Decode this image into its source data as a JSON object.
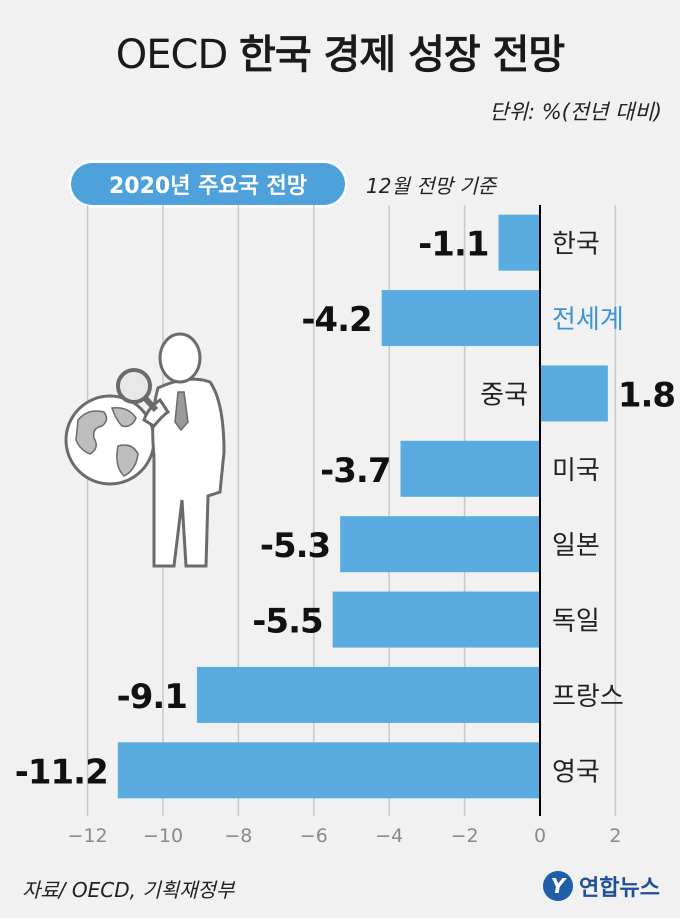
{
  "title": {
    "en": "OECD",
    "ko": "한국 경제 성장 전망"
  },
  "unit": "단위: %(전년 대비)",
  "pill_label": "2020년 주요국 전망",
  "basis": "12월 전망 기준",
  "source": "자료/ OECD, 기획재정부",
  "logo": {
    "mark": "Y",
    "text": "연합뉴스"
  },
  "colors": {
    "bar": "#5aabe0",
    "highlight_label": "#3d95d6",
    "background": "#f1f1f1",
    "axis": "#000000",
    "grid": "#c8c8c8"
  },
  "chart_data": {
    "type": "bar",
    "orientation": "horizontal",
    "categories": [
      "한국",
      "전세계",
      "중국",
      "미국",
      "일본",
      "독일",
      "프랑스",
      "영국"
    ],
    "values": [
      -1.1,
      -4.2,
      1.8,
      -3.7,
      -5.3,
      -5.5,
      -9.1,
      -11.2
    ],
    "labels": [
      "-1.1",
      "-4.2",
      "1.8",
      "-3.7",
      "-5.3",
      "-5.5",
      "-9.1",
      "-11.2"
    ],
    "highlight_category": "전세계",
    "xlim": [
      -12.5,
      2.2
    ],
    "xticks": [
      -12,
      -10,
      -8,
      -6,
      -4,
      -2,
      0,
      2
    ],
    "grid": true
  },
  "illustration": "person-with-magnifier-and-globe"
}
